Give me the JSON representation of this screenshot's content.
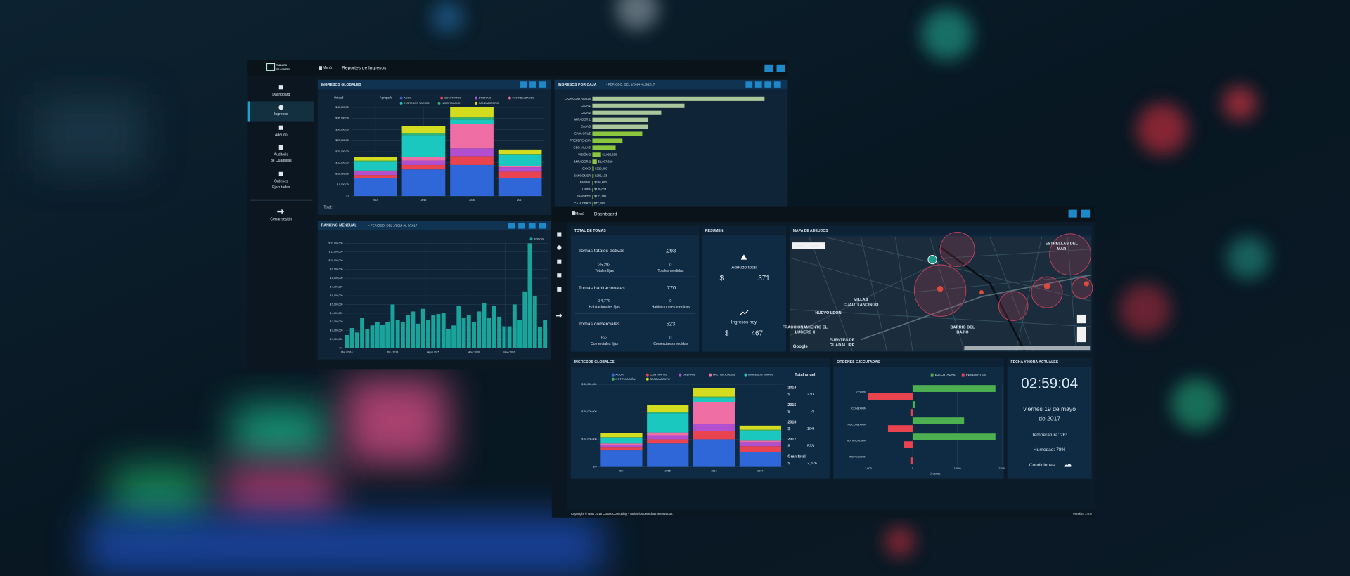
{
  "back_window": {
    "brand": [
      "TABLERO",
      "DE CONTROL"
    ],
    "menu": "Menú",
    "title": "Reportes de Ingresos",
    "nav": [
      {
        "lines": [
          "Dashboard"
        ]
      },
      {
        "lines": [
          "Ingresos"
        ]
      },
      {
        "lines": [
          "Adeudo"
        ]
      },
      {
        "lines": [
          "Auditoría",
          "de Cuadrillas"
        ]
      },
      {
        "lines": [
          "Órdenes",
          "Ejecutadas"
        ]
      }
    ],
    "logout": "Cerrar sesión",
    "ingresos_globales": {
      "title": "INGRESOS GLOBALES",
      "unit_label": "Unidad",
      "group_label": "Agrupado",
      "total_label": "Total:",
      "chart": {
        "type": "bar",
        "stacked": true,
        "categories": [
          "2014",
          "2015",
          "2016",
          "2017"
        ],
        "series": [
          {
            "name": "AGUA",
            "color": "#2f66d8",
            "values": [
              8000000,
              12000000,
              14000000,
              8000000
            ]
          },
          {
            "name": "CONTRATOS",
            "color": "#e8434f",
            "values": [
              1500000,
              2000000,
              4000000,
              3000000
            ]
          },
          {
            "name": "DRENAJE",
            "color": "#b24fd1",
            "values": [
              1500000,
              2000000,
              3500000,
              2000000
            ]
          },
          {
            "name": "FACTIBILIDADES",
            "color": "#ef6fa5",
            "values": [
              500000,
              1500000,
              11000000,
              500000
            ]
          },
          {
            "name": "INGRESOS VARIOS",
            "color": "#1bc8c0",
            "values": [
              4000000,
              10000000,
              2000000,
              5000000
            ]
          },
          {
            "name": "NOTIFICACIÓN",
            "color": "#37b36b",
            "values": [
              500000,
              1000000,
              1000000,
              500000
            ]
          },
          {
            "name": "SANEAMIENTO",
            "color": "#d4dc1f",
            "values": [
              1500000,
              3000000,
              4500000,
              2000000
            ]
          }
        ],
        "ylim": [
          0,
          40000000
        ],
        "yticks": [
          {
            "value": 0,
            "label": "$ 0"
          },
          {
            "value": 5000000,
            "label": "$ 5,000,000"
          },
          {
            "value": 10000000,
            "label": "$ 10,000,000"
          },
          {
            "value": 15000000,
            "label": "$ 15,000,000"
          },
          {
            "value": 20000000,
            "label": "$ 20,000,000"
          },
          {
            "value": 25000000,
            "label": "$ 25,000,000"
          },
          {
            "value": 30000000,
            "label": "$ 30,000,000"
          },
          {
            "value": 35000000,
            "label": "$ 35,000,000"
          },
          {
            "value": 40000000,
            "label": "$ 40,000,000"
          }
        ]
      }
    },
    "ingresos_por_caja": {
      "title": "INGRESOS POR CAJA",
      "period": "- PERIODO: DEL 1/2014 AL 5/2017",
      "chart": {
        "type": "bar",
        "orientation": "horizontal",
        "categories": [
          "CAJA CONTRATOS",
          "CAJA 1",
          "CAJA 2",
          "MIRADOR 1",
          "CAJA 3",
          "CAJA CRUZ",
          "PREFERENCIA",
          "GEO VILLAS",
          "VISIÓN 3",
          "MIRADOR 2",
          "OXXO",
          "BANCOMER",
          "PAYPAL",
          "LINEA",
          "BANORTE",
          "CAJA CERO"
        ],
        "values": [
          40000000,
          21400000,
          16000000,
          13000000,
          13000000,
          11600000,
          7000000,
          5400000,
          1996690,
          1037610,
          329409,
          285133,
          186660,
          139014,
          121786,
          77153
        ],
        "value_labels": [
          null,
          null,
          null,
          null,
          null,
          null,
          null,
          null,
          "$1,996,690",
          "$1,037,610",
          "$329,409",
          "$285,133",
          "$186,660",
          "$139,014",
          "$121,786",
          "$77,153"
        ],
        "colors": [
          "#a9c79b",
          "#a9c79b",
          "#a9c79b",
          "#a9c79b",
          "#a9c79b",
          "#8cc63f",
          "#8cc63f",
          "#8cc63f",
          "#8cc63f",
          "#8cc63f",
          "#8cc63f",
          "#8cc63f",
          "#8cc63f",
          "#8cc63f",
          "#8cc63f",
          "#8cc63f"
        ],
        "xlim": [
          0,
          42000000
        ]
      }
    },
    "ranking": {
      "title": "RANKING MENSUAL",
      "period": "- PERIODO: DEL 1/2014 AL 5/2017",
      "chart": {
        "type": "bar",
        "categories": [
          "Mar / 2014",
          null,
          null,
          null,
          null,
          null,
          null,
          null,
          null,
          "Dic / 2014",
          null,
          null,
          null,
          null,
          null,
          null,
          null,
          "Ago / 2015",
          null,
          null,
          null,
          null,
          null,
          null,
          null,
          "Abr / 2016",
          null,
          null,
          null,
          null,
          null,
          null,
          "Nov / 2016",
          null,
          null,
          null,
          null,
          null,
          null,
          null
        ],
        "series": [
          {
            "name": "TODOS",
            "color": "#1aa39b",
            "values": [
              1500000,
              2300000,
              1800000,
              3500000,
              2200000,
              2600000,
              3000000,
              2700000,
              3000000,
              5000000,
              3200000,
              3000000,
              3800000,
              4200000,
              2800000,
              4500000,
              3200000,
              3800000,
              3900000,
              4000000,
              2200000,
              2600000,
              4800000,
              3500000,
              3800000,
              3000000,
              4200000,
              5200000,
              3500000,
              4800000,
              3600000,
              2500000,
              2500000,
              5000000,
              3200000,
              6500000,
              12000000,
              6000000,
              2400000,
              3200000
            ]
          }
        ],
        "ylim": [
          0,
          12000000
        ],
        "yticks": [
          {
            "value": 0,
            "label": "$ 0"
          },
          {
            "value": 1000000,
            "label": "$ 1,000,000"
          },
          {
            "value": 2000000,
            "label": "$ 2,000,000"
          },
          {
            "value": 3000000,
            "label": "$ 3,000,000"
          },
          {
            "value": 4000000,
            "label": "$ 4,000,000"
          },
          {
            "value": 5000000,
            "label": "$ 5,000,000"
          },
          {
            "value": 6000000,
            "label": "$ 6,000,000"
          },
          {
            "value": 7000000,
            "label": "$ 7,000,000"
          },
          {
            "value": 8000000,
            "label": "$ 8,000,000"
          },
          {
            "value": 9000000,
            "label": "$ 9,000,000"
          },
          {
            "value": 10000000,
            "label": "$ 10,000,000"
          },
          {
            "value": 11000000,
            "label": "$ 11,000,000"
          },
          {
            "value": 12000000,
            "label": "$ 12,000,000"
          }
        ]
      }
    }
  },
  "front_window": {
    "menu": "Menú",
    "title": "Dashboard",
    "tomas": {
      "title": "TOTAL DE TOMAS",
      "rows": [
        {
          "label": "Tomas totales activas",
          "value": ".293",
          "sub": [
            {
              "value": "35,293",
              "label": "Totales fijas"
            },
            {
              "value": "0",
              "label": "Totales medidas"
            }
          ]
        },
        {
          "label": "Tomas habitacionales",
          "value": ".770",
          "sub": [
            {
              "value": "34,770",
              "label": "Habitacionales fijas"
            },
            {
              "value": "0",
              "label": "Habitacionales medidas"
            }
          ]
        },
        {
          "label": "Tomas comerciales",
          "value": "523",
          "sub": [
            {
              "value": "523",
              "label": "Comerciales fijas"
            },
            {
              "value": "0",
              "label": "Comerciales medidas"
            }
          ]
        }
      ]
    },
    "resumen": {
      "title": "RESUMEN",
      "debt_label": "Adeudo total",
      "debt_currency": "$",
      "debt_value": ".371",
      "income_label": "Ingresos hoy",
      "income_currency": "$",
      "income_value": "467"
    },
    "mapa": {
      "title": "MAPA DE ADEUDOS",
      "map_tab": "Mapa",
      "satellite_tab": "Satélite",
      "places": [
        "ESTRELLAS DEL MAR",
        "VILLAS CUAUTLANCINGO",
        "NUEVO LEÓN",
        "FRACCIONAMIENTO EL LUCERO II",
        "BARRIO DEL BAJÍO",
        "FUENTES DE GUADALUPE"
      ],
      "google": "Google"
    },
    "ingresos_globales": {
      "title": "INGRESOS GLOBALES",
      "chart": {
        "type": "bar",
        "stacked": true,
        "categories": [
          "2014",
          "2015",
          "2016",
          "2017"
        ],
        "series": [
          {
            "name": "AGUA",
            "color": "#2f66d8",
            "values": [
              6000000,
              8500000,
              10000000,
              5500000
            ]
          },
          {
            "name": "CONTRATOS",
            "color": "#e8434f",
            "values": [
              1000000,
              1500000,
              3000000,
              2000000
            ]
          },
          {
            "name": "DRENAJE",
            "color": "#b24fd1",
            "values": [
              1000000,
              1500000,
              2500000,
              1500000
            ]
          },
          {
            "name": "FACTIBILIDADES",
            "color": "#ef6fa5",
            "values": [
              500000,
              1000000,
              8000000,
              500000
            ]
          },
          {
            "name": "INGRESOS VARIOS",
            "color": "#1bc8c0",
            "values": [
              2000000,
              7000000,
              1500000,
              3500000
            ]
          },
          {
            "name": "NOTIFICACIÓN",
            "color": "#37b36b",
            "values": [
              300000,
              500000,
              500000,
              500000
            ]
          },
          {
            "name": "SANEAMIENTO",
            "color": "#d4dc1f",
            "values": [
              1500000,
              2500000,
              3000000,
              1500000
            ]
          }
        ],
        "ylim": [
          0,
          30000000
        ],
        "yticks": [
          {
            "value": 0,
            "label": "$ 0"
          },
          {
            "value": 10000000,
            "label": "$ 10,000,000"
          },
          {
            "value": 20000000,
            "label": "$ 20,000,000"
          },
          {
            "value": 30000000,
            "label": "$ 30,000,000"
          }
        ]
      },
      "annual_label": "Total anual:",
      "years": [
        {
          "year": "2014",
          "currency": "$",
          "amount": ".230"
        },
        {
          "year": "2015",
          "currency": "$",
          "amount": ".4"
        },
        {
          "year": "2016",
          "currency": "$",
          "amount": ".164"
        },
        {
          "year": "2017",
          "currency": "$",
          "amount": ".523"
        }
      ],
      "grand_label": "Gran total",
      "grand_currency": "$",
      "grand_amount": "2,326"
    },
    "ordenes": {
      "title": "ORDENES EJECUTADAS",
      "chart": {
        "type": "bar",
        "orientation": "horizontal",
        "categories": [
          "CORTE",
          "CONEXIÓN",
          "RECONEXIÓN",
          "NOTIFICACIÓN",
          "INSPECCIÓN"
        ],
        "series": [
          {
            "name": "EJECUTADAS",
            "color": "#4caf50",
            "values": [
              1850,
              50,
              1150,
              1850,
              0
            ]
          },
          {
            "name": "PENDIENTES",
            "color": "#e8434f",
            "values": [
              -1000,
              -50,
              -550,
              -200,
              -50
            ]
          }
        ],
        "xlim": [
          -1000,
          2000
        ],
        "xticks": [
          {
            "value": -1000,
            "label": "-1,000"
          },
          0,
          {
            "value": 1000,
            "label": "1,000"
          },
          {
            "value": 2000,
            "label": "2,000"
          }
        ],
        "x_label": "Órdenes"
      }
    },
    "fecha": {
      "title": "FECHA Y HORA ACTUALES",
      "time": "02:59:04",
      "date_lines": [
        "viernes 19 de mayo",
        "de 2017"
      ],
      "temperature": "Temperatura: 26°",
      "humidity": "Humedad: 78%",
      "conditions": "Condiciones:"
    },
    "footer": {
      "copyright": "Copyright © Now 2016 Cosas Consulting - Todos los derechos reservados.",
      "version": "Versión: 1.0.0"
    }
  }
}
